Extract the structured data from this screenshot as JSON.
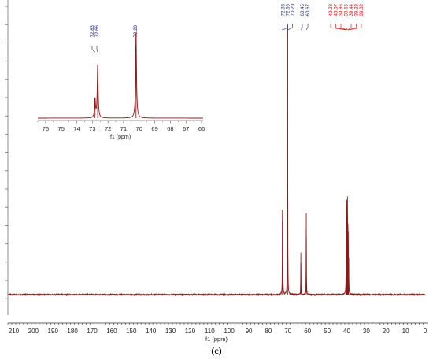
{
  "figure": {
    "header_text": "",
    "panel_label": "(c)"
  },
  "chart_data": [
    {
      "type": "line",
      "role": "main-spectrum",
      "xlabel": "f1 (ppm)",
      "ylabel": "",
      "xlim": [
        213,
        0
      ],
      "x_reversed": true,
      "x_ticks": [
        210,
        200,
        190,
        180,
        170,
        160,
        150,
        140,
        130,
        120,
        110,
        100,
        90,
        80,
        70,
        60,
        50,
        40,
        30,
        20,
        10,
        0
      ],
      "grid": false,
      "line_color": "#8b1a1a",
      "peaks": [
        {
          "ppm": 72.83,
          "height": 0.26
        },
        {
          "ppm": 72.66,
          "height": 0.26
        },
        {
          "ppm": 70.2,
          "height": 0.96
        },
        {
          "ppm": 63.45,
          "height": 0.15
        },
        {
          "ppm": 60.67,
          "height": 0.29
        },
        {
          "ppm": 40.28,
          "height": 0.22
        },
        {
          "ppm": 40.07,
          "height": 0.28
        },
        {
          "ppm": 39.86,
          "height": 0.29
        },
        {
          "ppm": 39.65,
          "height": 0.28
        },
        {
          "ppm": 39.44,
          "height": 0.24
        },
        {
          "ppm": 39.23,
          "height": 0.18
        },
        {
          "ppm": 39.02,
          "height": 0.12
        }
      ],
      "peak_labels": [
        {
          "text": "72.83",
          "color": "#1a237e"
        },
        {
          "text": "72.66",
          "color": "#1a237e"
        },
        {
          "text": "70.20",
          "color": "#1a237e"
        },
        {
          "text": "63.45",
          "color": "#1a237e"
        },
        {
          "text": "60.67",
          "color": "#1a237e"
        },
        {
          "text": "40.28",
          "color": "#d50000"
        },
        {
          "text": "40.07",
          "color": "#d50000"
        },
        {
          "text": "39.86",
          "color": "#d50000"
        },
        {
          "text": "39.65",
          "color": "#d50000"
        },
        {
          "text": "39.44",
          "color": "#d50000"
        },
        {
          "text": "39.23",
          "color": "#d50000"
        },
        {
          "text": "39.02",
          "color": "#d50000"
        }
      ]
    },
    {
      "type": "line",
      "role": "inset-expansion",
      "xlabel": "f1 (ppm)",
      "xlim": [
        76.5,
        65.9
      ],
      "x_reversed": true,
      "x_ticks": [
        76,
        75,
        74,
        73,
        72,
        71,
        70,
        69,
        68,
        67,
        66
      ],
      "line_color": "#8b1a1a",
      "peaks": [
        {
          "ppm": 72.83,
          "height": 0.22
        },
        {
          "ppm": 72.66,
          "height": 0.62
        },
        {
          "ppm": 70.2,
          "height": 1.0
        }
      ],
      "peak_labels": [
        {
          "text": "72.83",
          "color": "#1a237e"
        },
        {
          "text": "72.66",
          "color": "#1a237e"
        },
        {
          "text": "70.20",
          "color": "#1a237e"
        }
      ]
    }
  ]
}
